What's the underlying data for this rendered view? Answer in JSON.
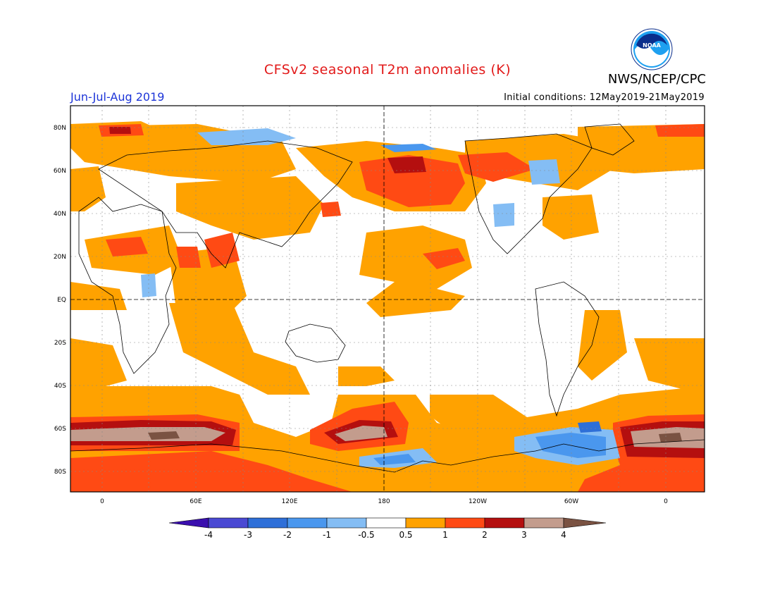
{
  "title": "CFSv2 seasonal T2m anomalies (K)",
  "period": "Jun-Jul-Aug 2019",
  "initial_conditions": "Initial conditions: 12May2019-21May2019",
  "agency": "NWS/NCEP/CPC",
  "logo_text": "NOAA",
  "lat_ticks": [
    "80N",
    "60N",
    "40N",
    "20N",
    "EQ",
    "20S",
    "40S",
    "60S",
    "80S"
  ],
  "lon_ticks": [
    "0",
    "60E",
    "120E",
    "180",
    "120W",
    "60W",
    "0"
  ],
  "colorbar": {
    "labels": [
      "-4",
      "-3",
      "-2",
      "-1",
      "-0.5",
      "0.5",
      "1",
      "2",
      "3",
      "4"
    ],
    "colors": [
      "#3a0fae",
      "#4a49d3",
      "#2e6fd8",
      "#4a97ee",
      "#84bdf4",
      "#ffffff",
      "#ffa200",
      "#ff4a14",
      "#b40f0f",
      "#c39c8d",
      "#7a5242"
    ]
  },
  "anomaly_colors": {
    "warm_weak": "#ffa200",
    "warm_mid": "#ff4a14",
    "warm_strong": "#b40f0f",
    "warm_very_strong": "#c39c8d",
    "warm_extreme": "#7a5242",
    "cold_weak": "#84bdf4",
    "cold_mid": "#4a97ee",
    "cold_strong": "#2e6fd8"
  }
}
